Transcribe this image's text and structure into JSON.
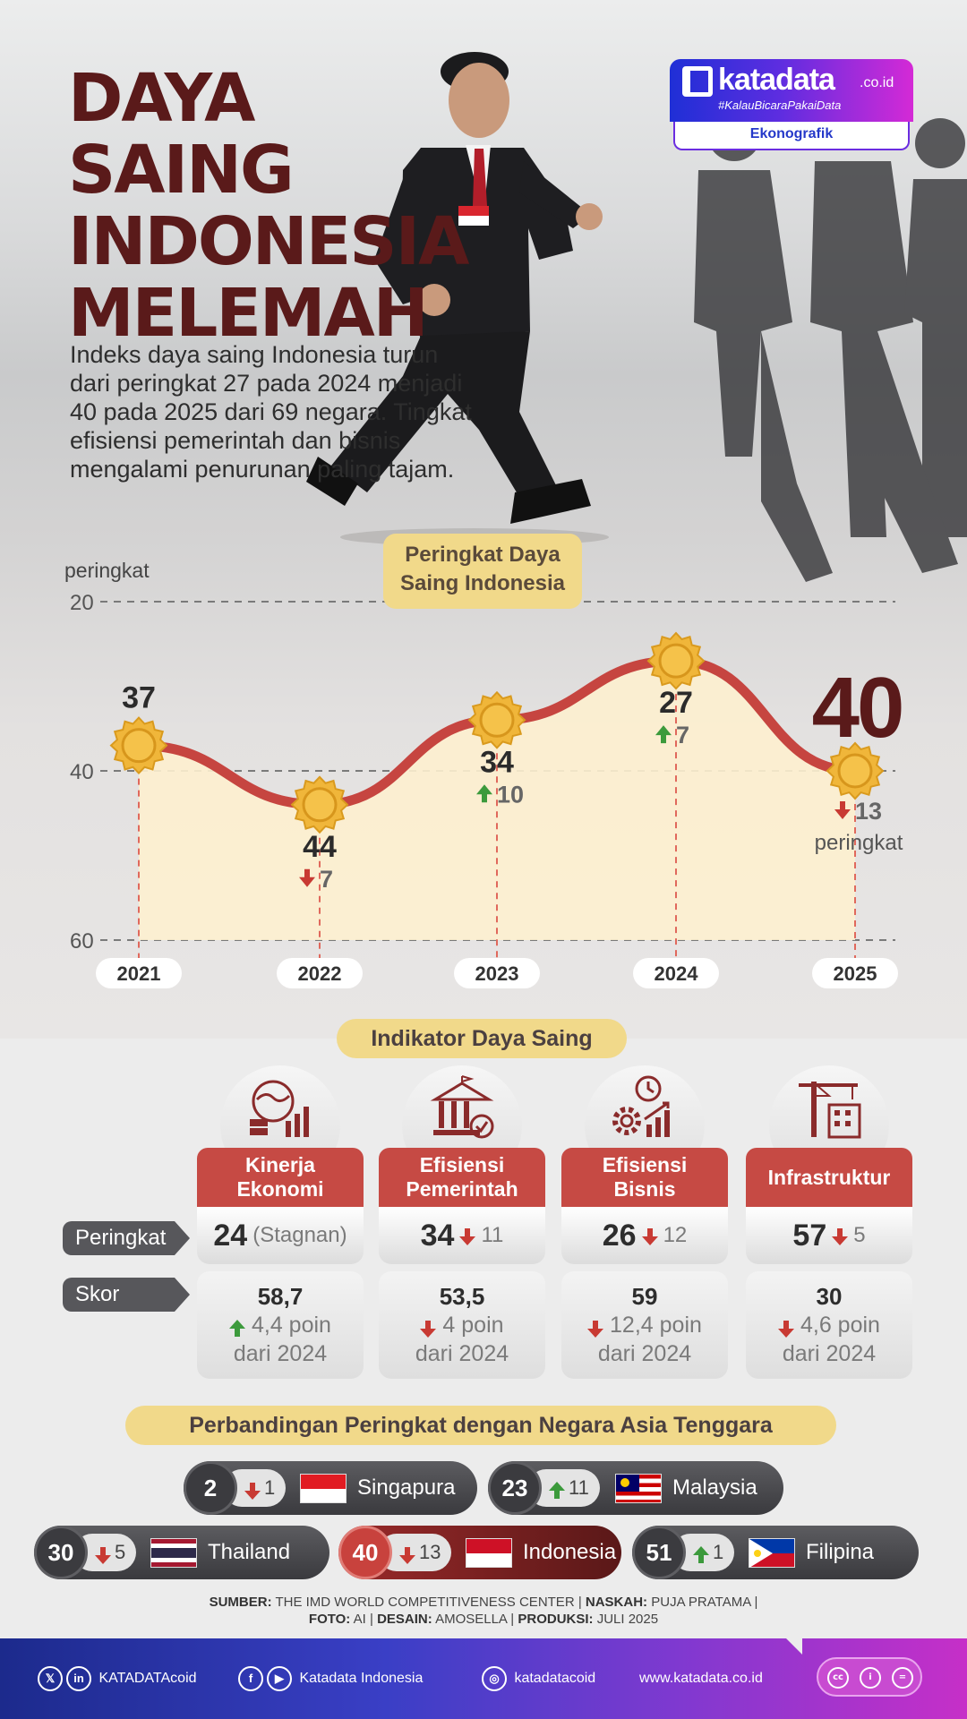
{
  "title": {
    "lines": [
      "DAYA SAING",
      "INDONESIA",
      "MELEMAH"
    ]
  },
  "brand": {
    "name": "katadata",
    "tld": ".co.id",
    "hashtag": "#KalauBicaraPakaiData",
    "section": "Ekonografik"
  },
  "intro": "Indeks daya saing Indonesia turun dari peringkat 27 pada 2024 menjadi 40 pada 2025 dari 69 negara. Tingkat efisiensi pemerintah dan bisnis mengalami penurunan paling tajam.",
  "chart_data": {
    "type": "area",
    "title": "Peringkat Daya Saing Indonesia",
    "ylabel": "peringkat",
    "ylim": [
      60,
      20
    ],
    "y_inverted": true,
    "y_ticks": [
      "20",
      "40",
      "60"
    ],
    "categories": [
      "2021",
      "2022",
      "2023",
      "2024",
      "2025"
    ],
    "values": [
      37,
      44,
      34,
      27,
      40
    ],
    "labels": [
      "37",
      "44",
      "34",
      "27",
      "40"
    ],
    "changes": [
      {
        "dir": "none",
        "text": ""
      },
      {
        "dir": "down",
        "text": "7"
      },
      {
        "dir": "up",
        "text": "10"
      },
      {
        "dir": "up",
        "text": "7"
      },
      {
        "dir": "down",
        "text": "13"
      }
    ],
    "last_change_suffix": "peringkat",
    "colors": {
      "line": "#c64540",
      "fill": "#fdf0cf",
      "marker": "#f0b63a",
      "highlight": "#5a1a1a"
    }
  },
  "indicators": {
    "title": "Indikator Daya Saing",
    "row_labels": {
      "rank": "Peringkat",
      "score": "Skor"
    },
    "items": [
      {
        "name": "Kinerja Ekonomi",
        "rank": "24",
        "rank_change": "(Stagnan)",
        "rank_dir": "none",
        "score": "58,7",
        "score_dir": "up",
        "score_change": "4,4 poin",
        "from": "dari 2024",
        "icon": "globe-coins-chart-icon"
      },
      {
        "name": "Efisiensi Pemerintah",
        "rank": "34",
        "rank_change": "11",
        "rank_dir": "down",
        "score": "53,5",
        "score_dir": "down",
        "score_change": "4 poin",
        "from": "dari 2024",
        "icon": "government-building-icon"
      },
      {
        "name": "Efisiensi Bisnis",
        "rank": "26",
        "rank_change": "12",
        "rank_dir": "down",
        "score": "59",
        "score_dir": "down",
        "score_change": "12,4 poin",
        "from": "dari 2024",
        "icon": "gear-clock-chart-icon"
      },
      {
        "name": "Infrastruktur",
        "rank": "57",
        "rank_change": "5",
        "rank_dir": "down",
        "score": "30",
        "score_dir": "down",
        "score_change": "4,6 poin",
        "from": "dari 2024",
        "icon": "crane-building-icon"
      }
    ]
  },
  "asean": {
    "title": "Perbandingan Peringkat dengan Negara Asia Tenggara",
    "countries": [
      {
        "rank": "2",
        "dir": "down",
        "change": "1",
        "name": "Singapura",
        "flag": "singapore-flag"
      },
      {
        "rank": "23",
        "dir": "up",
        "change": "11",
        "name": "Malaysia",
        "flag": "malaysia-flag"
      },
      {
        "rank": "30",
        "dir": "down",
        "change": "5",
        "name": "Thailand",
        "flag": "thailand-flag"
      },
      {
        "rank": "40",
        "dir": "down",
        "change": "13",
        "name": "Indonesia",
        "flag": "indonesia-flag"
      },
      {
        "rank": "51",
        "dir": "up",
        "change": "1",
        "name": "Filipina",
        "flag": "philippines-flag"
      }
    ]
  },
  "source": {
    "l1": [
      [
        "SUMBER:",
        " THE IMD WORLD COMPETITIVENESS CENTER | "
      ],
      [
        "NASKAH:",
        " PUJA PRATAMA |"
      ]
    ],
    "l2": [
      [
        "FOTO:",
        "  AI | "
      ],
      [
        "DESAIN:",
        " AMOSELLA | "
      ],
      [
        "PRODUKSI:",
        " JULI 2025"
      ]
    ]
  },
  "footer": {
    "handle_x_in": "KATADATAcoid",
    "handle_fb_yt": "Katadata Indonesia",
    "handle_ig": "katadatacoid",
    "website": "www.katadata.co.id"
  }
}
